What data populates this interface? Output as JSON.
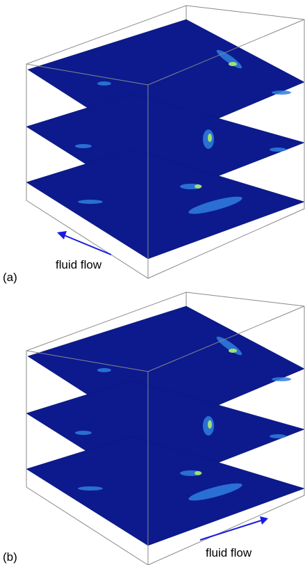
{
  "panels": [
    {
      "label": "(a)",
      "annotation": "fluid flow"
    },
    {
      "label": "(b)",
      "annotation": "fluid flow"
    }
  ]
}
